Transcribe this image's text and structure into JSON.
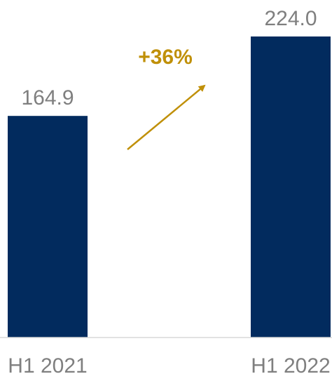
{
  "chart_data": {
    "type": "bar",
    "categories": [
      "H1 2021",
      "H1 2022"
    ],
    "values": [
      164.9,
      224.0
    ],
    "value_labels": [
      "164.9",
      "224.0"
    ],
    "ylim": [
      0,
      224.0
    ],
    "grid": false,
    "legend": "none",
    "annotations": [
      {
        "text": "+36%",
        "type": "growth-arrow",
        "from": "H1 2021",
        "to": "H1 2022"
      }
    ],
    "colors": {
      "bar": "#022B5E",
      "annotation": "#C09008",
      "label": "#7F7F7F",
      "axis": "#D9D9D9"
    }
  }
}
